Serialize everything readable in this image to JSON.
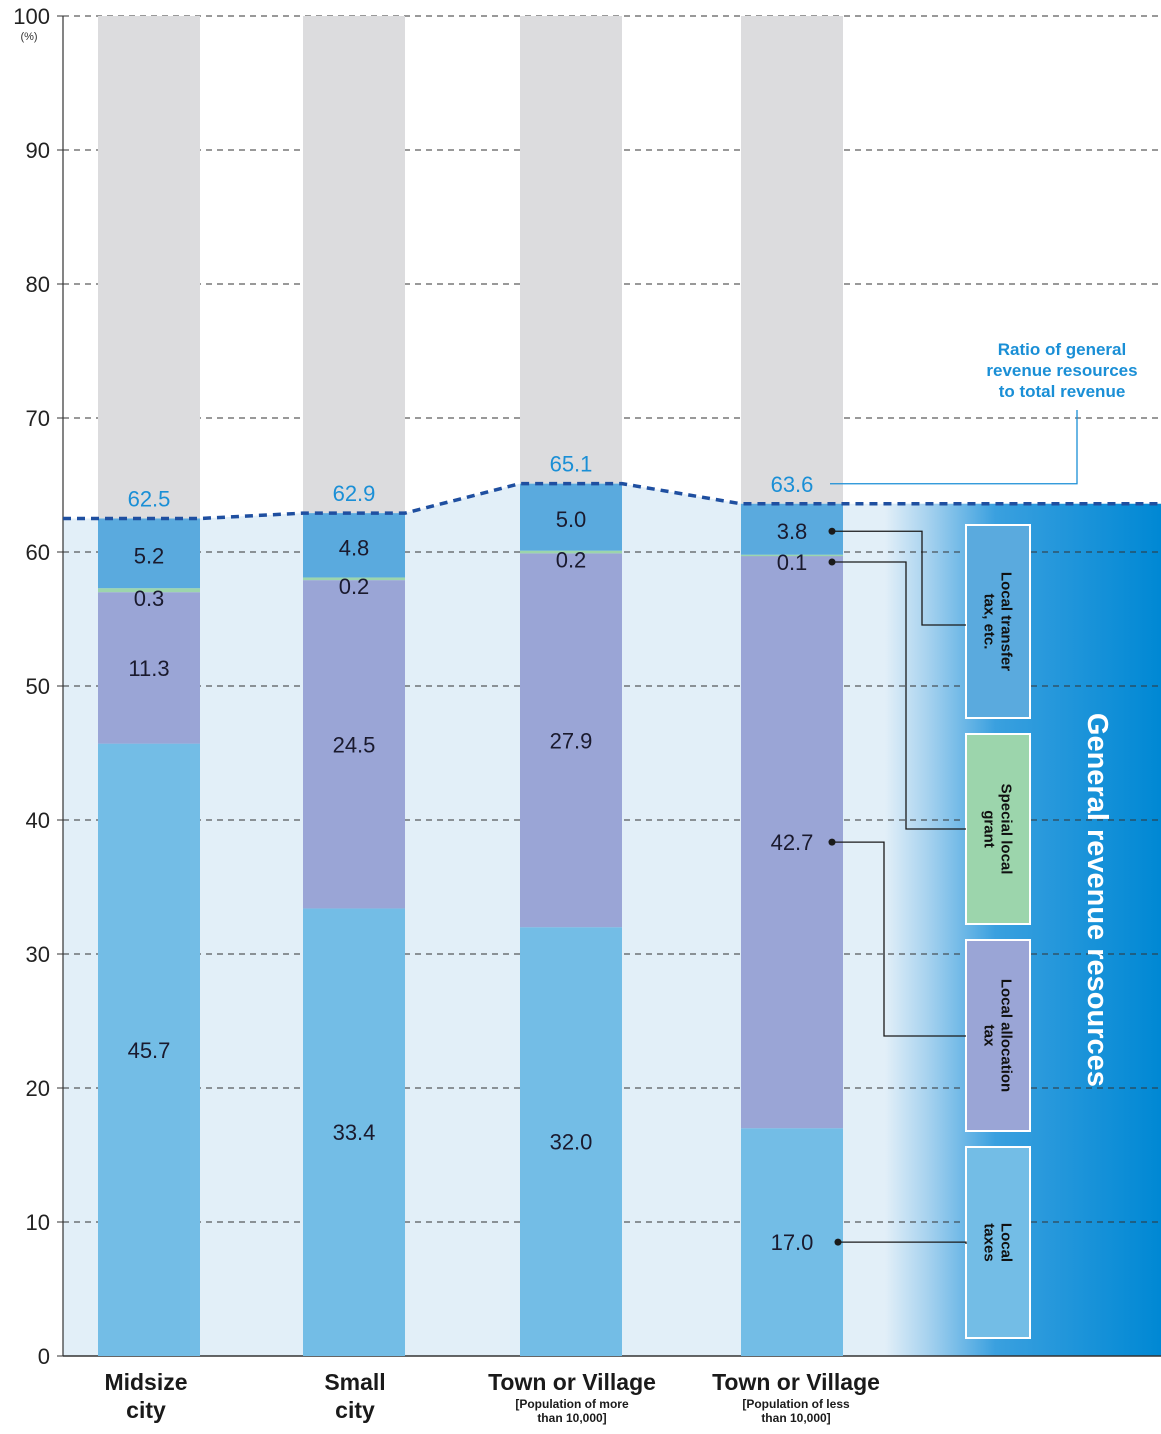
{
  "chart_data": {
    "type": "bar",
    "stacked": true,
    "y_unit": "(%)",
    "ylim": [
      0,
      100
    ],
    "yticks": [
      0,
      10,
      20,
      30,
      40,
      50,
      60,
      70,
      80,
      90,
      100
    ],
    "grid": true,
    "categories": [
      {
        "name": "Midsize city",
        "line1": "Midsize",
        "line2": "city",
        "sub1": "",
        "sub2": ""
      },
      {
        "name": "Small city",
        "line1": "Small",
        "line2": "city",
        "sub1": "",
        "sub2": ""
      },
      {
        "name": "Town or Village [Population of more than 10,000]",
        "line1": "Town or Village",
        "line2": "",
        "sub1": "[Population of more",
        "sub2": "than 10,000]"
      },
      {
        "name": "Town or Village [Population of less than 10,000]",
        "line1": "Town or Village",
        "line2": "",
        "sub1": "[Population of less",
        "sub2": "than 10,000]"
      }
    ],
    "series": [
      {
        "name": "Local taxes",
        "label_lines": [
          "Local",
          "taxes"
        ],
        "color": "#73bde6",
        "values": [
          45.7,
          33.4,
          32.0,
          17.0
        ]
      },
      {
        "name": "Local allocation tax",
        "label_lines": [
          "Local allocation",
          "tax"
        ],
        "color": "#9aa5d6",
        "values": [
          11.3,
          24.5,
          27.9,
          42.7
        ]
      },
      {
        "name": "Special local grant",
        "label_lines": [
          "Special local",
          "grant"
        ],
        "color": "#9cd5ac",
        "values": [
          0.3,
          0.2,
          0.2,
          0.1
        ]
      },
      {
        "name": "Local transfer tax, etc.",
        "label_lines": [
          "Local transfer",
          "tax, etc."
        ],
        "color": "#5aaade",
        "values": [
          5.2,
          4.8,
          5.0,
          3.8
        ]
      }
    ],
    "totals": [
      62.5,
      62.9,
      65.1,
      63.6
    ],
    "totals_name": "Ratio of general revenue resources to total revenue",
    "remainder_color": "#dcdcde"
  },
  "annotation": {
    "lines": [
      "Ratio of general",
      "revenue resources",
      "to total revenue"
    ],
    "color": "#1a8fd6"
  },
  "legend_band": {
    "title": "General revenue resources",
    "color": "#0088d4"
  },
  "colors": {
    "background_band": "#e2eff8",
    "dashed_line": "#1f4fa0",
    "text": "#1a1a2e"
  }
}
